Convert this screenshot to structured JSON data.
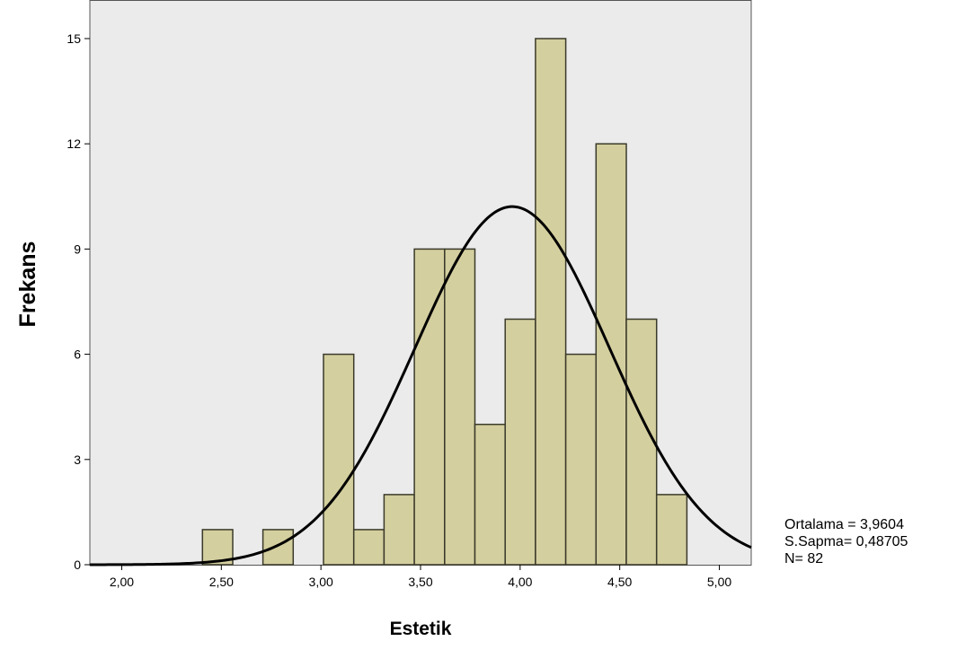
{
  "chart_data": {
    "type": "histogram",
    "xlabel": "Estetik",
    "ylabel": "Frekans",
    "xlim": [
      1.84,
      5.16
    ],
    "ylim": [
      0,
      16.1
    ],
    "x_ticks": [
      2.0,
      2.5,
      3.0,
      3.5,
      4.0,
      4.5,
      5.0
    ],
    "x_tick_labels": [
      "2,00",
      "2,50",
      "3,00",
      "3,50",
      "4,00",
      "4,50",
      "5,00"
    ],
    "y_ticks": [
      0,
      3,
      6,
      9,
      12,
      15
    ],
    "y_tick_labels": [
      "0",
      "3",
      "6",
      "9",
      "12",
      "15"
    ],
    "bin_width": 0.152,
    "bins": [
      {
        "start": 2.405,
        "count": 1
      },
      {
        "start": 2.709,
        "count": 1
      },
      {
        "start": 3.013,
        "count": 6
      },
      {
        "start": 3.165,
        "count": 1
      },
      {
        "start": 3.317,
        "count": 2
      },
      {
        "start": 3.469,
        "count": 9
      },
      {
        "start": 3.621,
        "count": 9
      },
      {
        "start": 3.773,
        "count": 4
      },
      {
        "start": 3.925,
        "count": 7
      },
      {
        "start": 4.077,
        "count": 15
      },
      {
        "start": 4.229,
        "count": 6
      },
      {
        "start": 4.381,
        "count": 12
      },
      {
        "start": 4.533,
        "count": 7
      },
      {
        "start": 4.685,
        "count": 2
      }
    ],
    "normal_curve": {
      "mean": 3.9604,
      "sd": 0.48705,
      "n": 82
    },
    "grid": false,
    "colors": {
      "bar_fill": "#d4cf9f",
      "bar_stroke": "#3a3a2a",
      "plot_bg": "#ebebeb",
      "curve": "#000000"
    }
  },
  "stats": {
    "mean_line": "Ortalama = 3,9604",
    "sd_line": "S.Sapma= 0,48705",
    "n_line": "N= 82"
  }
}
